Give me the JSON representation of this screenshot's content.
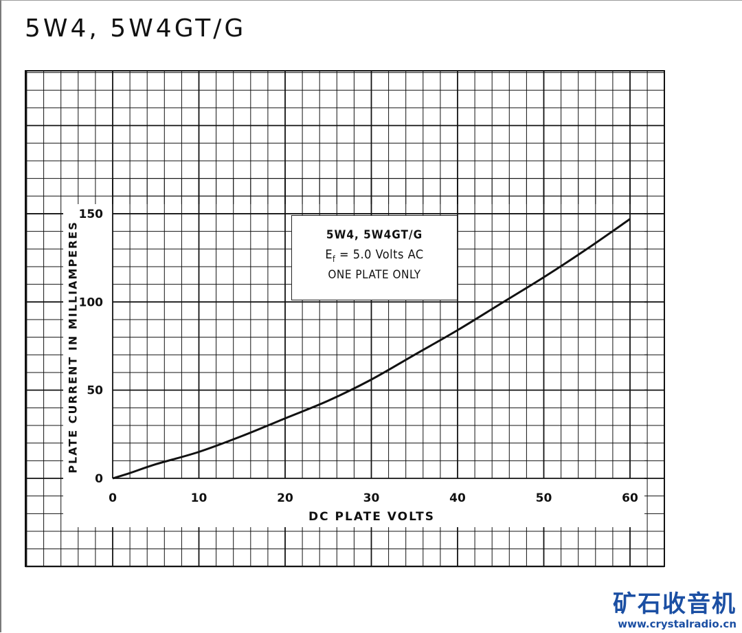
{
  "title": "5W4, 5W4GT/G",
  "chart_data": {
    "type": "line",
    "xlabel": "DC PLATE VOLTS",
    "ylabel": "PLATE CURRENT IN MILLIAMPERES",
    "xlim": [
      0,
      60
    ],
    "ylim": [
      0,
      150
    ],
    "x_ticks": [
      "0",
      "10",
      "20",
      "30",
      "40",
      "50",
      "60"
    ],
    "y_ticks": [
      "0",
      "50",
      "100",
      "150"
    ],
    "grid": true,
    "annotation": {
      "line1": "5W4, 5W4GT/G",
      "line2_main": "E",
      "line2_sub": "f",
      "line2_rest": " = 5.0 Volts AC",
      "line3": "ONE PLATE ONLY"
    },
    "series": [
      {
        "x": [
          0,
          2,
          5,
          10,
          15,
          20,
          25,
          30,
          35,
          40,
          45,
          50,
          55,
          60
        ],
        "y": [
          0,
          3,
          8,
          15,
          24,
          34,
          44,
          56,
          70,
          84,
          99,
          114,
          130,
          147
        ]
      }
    ]
  },
  "watermark": {
    "name": "矿石收音机",
    "url": "www.crystalradio.cn"
  }
}
